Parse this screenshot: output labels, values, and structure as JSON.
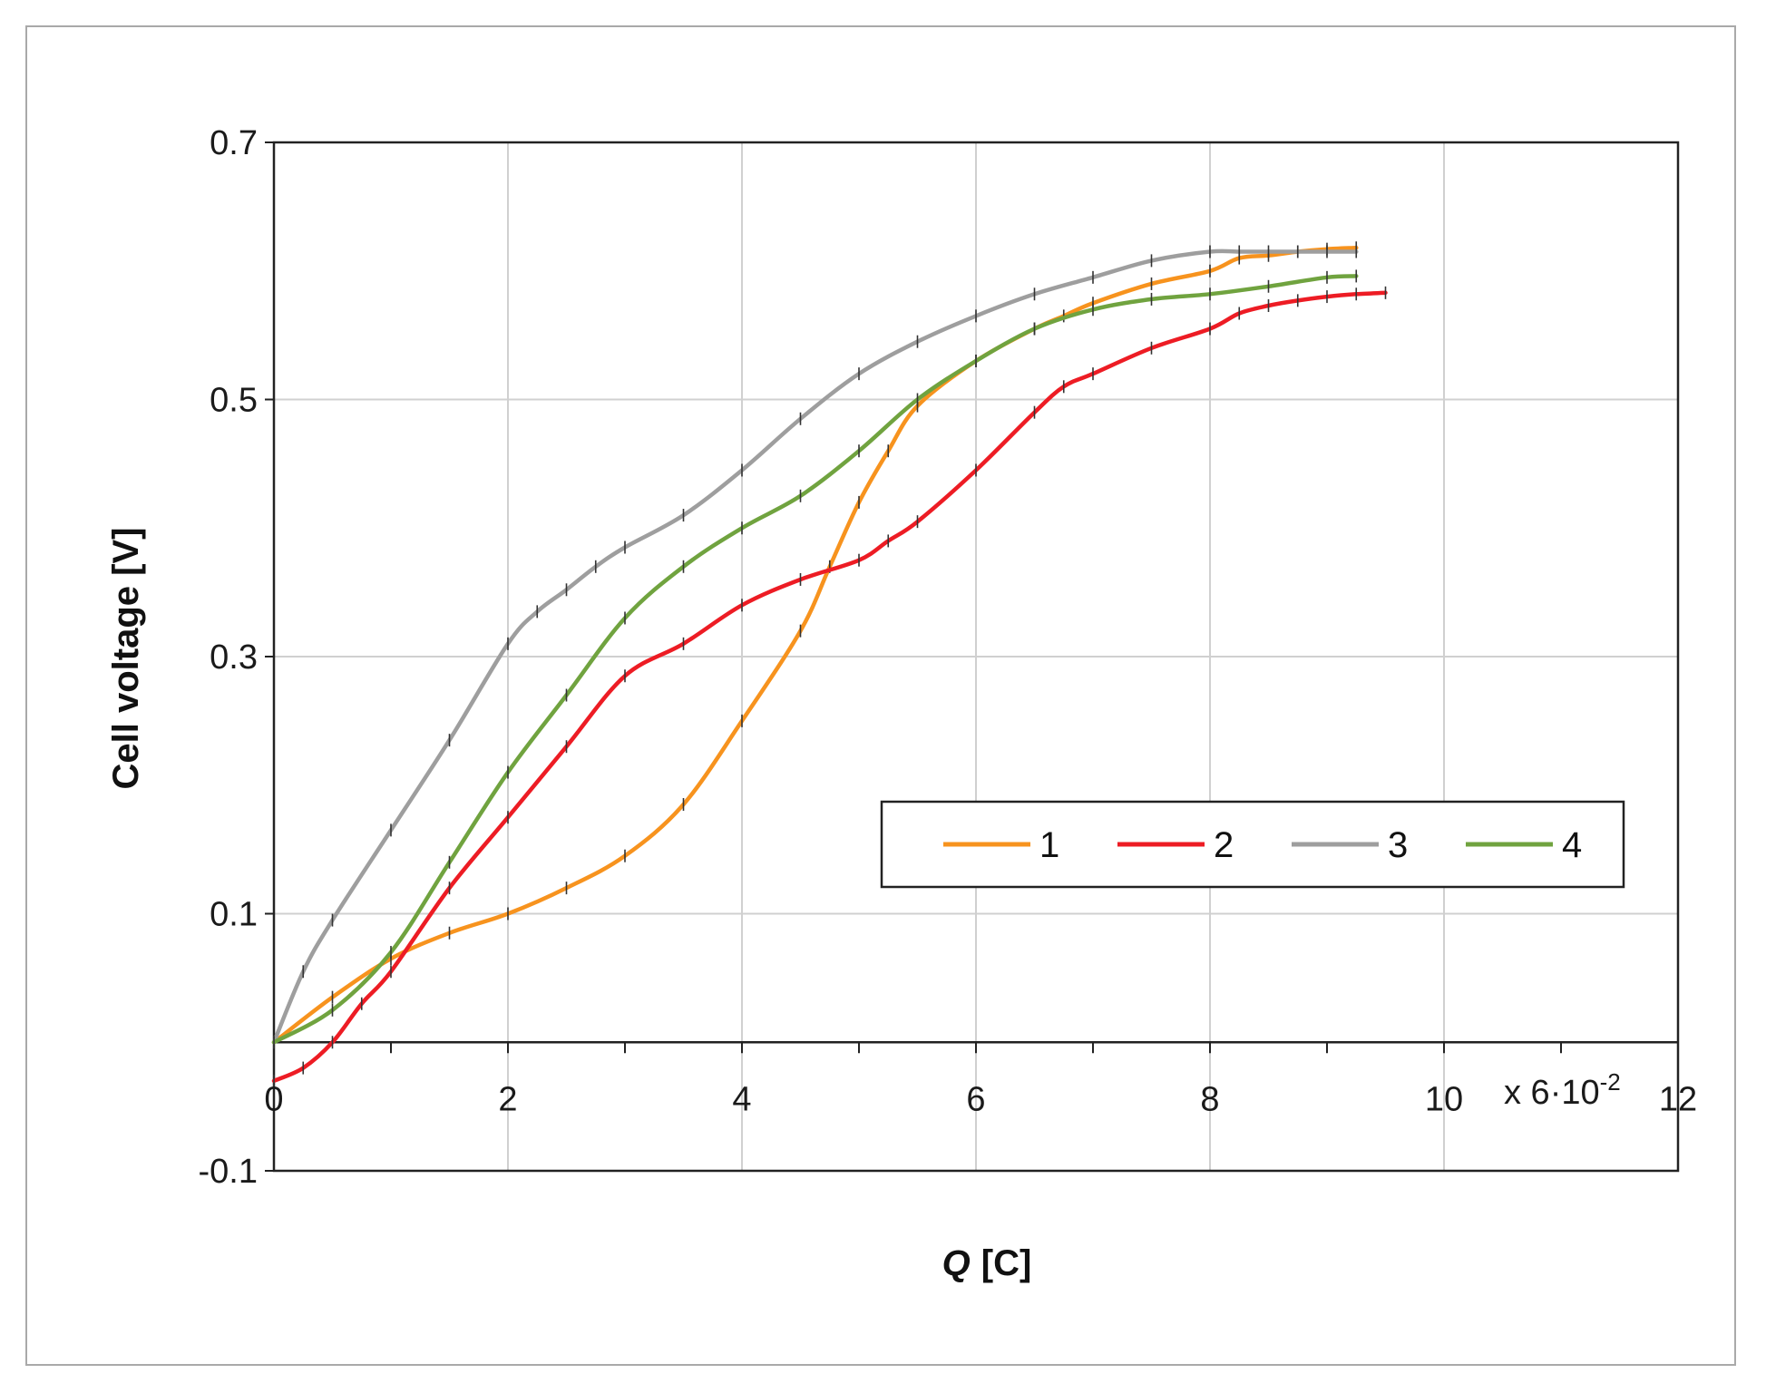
{
  "chart_data": {
    "type": "line",
    "title": "",
    "xlabel_italic": "Q",
    "xlabel_rest": "[C]",
    "ylabel": "Cell voltage [V]",
    "x_multiplier_label": "x 6·10",
    "x_multiplier_exp": "-2",
    "xlim": [
      0,
      12
    ],
    "ylim": [
      -0.1,
      0.7
    ],
    "x_axis_at_y": 0,
    "xticks": [
      0,
      2,
      4,
      6,
      8,
      10,
      12
    ],
    "xtick_labels": [
      "0",
      "2",
      "4",
      "6",
      "8",
      "10",
      "12"
    ],
    "yticks": [
      -0.1,
      0.1,
      0.3,
      0.5,
      0.7
    ],
    "ytick_labels": [
      "-0.1",
      "0.1",
      "0.3",
      "0.5",
      "0.7"
    ],
    "grid": true,
    "legend_position": "center-right",
    "series": [
      {
        "name": "1",
        "color": "#F7931E",
        "x": [
          0,
          0.5,
          1.0,
          1.5,
          2.0,
          2.5,
          3.0,
          3.5,
          4.0,
          4.5,
          4.75,
          5.0,
          5.25,
          5.5,
          6.0,
          6.5,
          6.75,
          7.0,
          7.5,
          8.0,
          8.25,
          8.5,
          8.75,
          9.0,
          9.25
        ],
        "y": [
          0.0,
          0.035,
          0.065,
          0.085,
          0.1,
          0.12,
          0.145,
          0.185,
          0.25,
          0.32,
          0.37,
          0.42,
          0.46,
          0.495,
          0.53,
          0.555,
          0.565,
          0.575,
          0.59,
          0.6,
          0.61,
          0.612,
          0.615,
          0.617,
          0.618
        ]
      },
      {
        "name": "2",
        "color": "#ED1C24",
        "x": [
          0,
          0.25,
          0.5,
          0.75,
          1.0,
          1.5,
          2.0,
          2.5,
          3.0,
          3.5,
          4.0,
          4.5,
          5.0,
          5.25,
          5.5,
          6.0,
          6.5,
          6.75,
          7.0,
          7.5,
          8.0,
          8.25,
          8.5,
          8.75,
          9.0,
          9.25,
          9.5
        ],
        "y": [
          -0.03,
          -0.02,
          0.0,
          0.03,
          0.055,
          0.12,
          0.175,
          0.23,
          0.285,
          0.31,
          0.34,
          0.36,
          0.375,
          0.39,
          0.405,
          0.445,
          0.49,
          0.51,
          0.52,
          0.54,
          0.555,
          0.567,
          0.573,
          0.577,
          0.58,
          0.582,
          0.583
        ]
      },
      {
        "name": "3",
        "color": "#9E9E9E",
        "x": [
          0,
          0.25,
          0.5,
          1.0,
          1.5,
          2.0,
          2.25,
          2.5,
          2.75,
          3.0,
          3.5,
          4.0,
          4.5,
          5.0,
          5.5,
          6.0,
          6.5,
          7.0,
          7.5,
          8.0,
          8.25,
          8.5,
          8.75,
          9.0,
          9.25
        ],
        "y": [
          0.0,
          0.055,
          0.095,
          0.165,
          0.235,
          0.31,
          0.335,
          0.352,
          0.37,
          0.385,
          0.41,
          0.445,
          0.485,
          0.52,
          0.545,
          0.565,
          0.582,
          0.595,
          0.608,
          0.615,
          0.615,
          0.615,
          0.615,
          0.615,
          0.615
        ]
      },
      {
        "name": "4",
        "color": "#70A33F",
        "x": [
          0,
          0.5,
          1.0,
          1.5,
          2.0,
          2.5,
          3.0,
          3.5,
          4.0,
          4.5,
          5.0,
          5.5,
          6.0,
          6.5,
          7.0,
          7.5,
          8.0,
          8.5,
          9.0,
          9.25
        ],
        "y": [
          0.0,
          0.025,
          0.07,
          0.14,
          0.21,
          0.27,
          0.33,
          0.37,
          0.4,
          0.425,
          0.46,
          0.5,
          0.53,
          0.555,
          0.57,
          0.578,
          0.582,
          0.588,
          0.595,
          0.596
        ]
      }
    ]
  }
}
